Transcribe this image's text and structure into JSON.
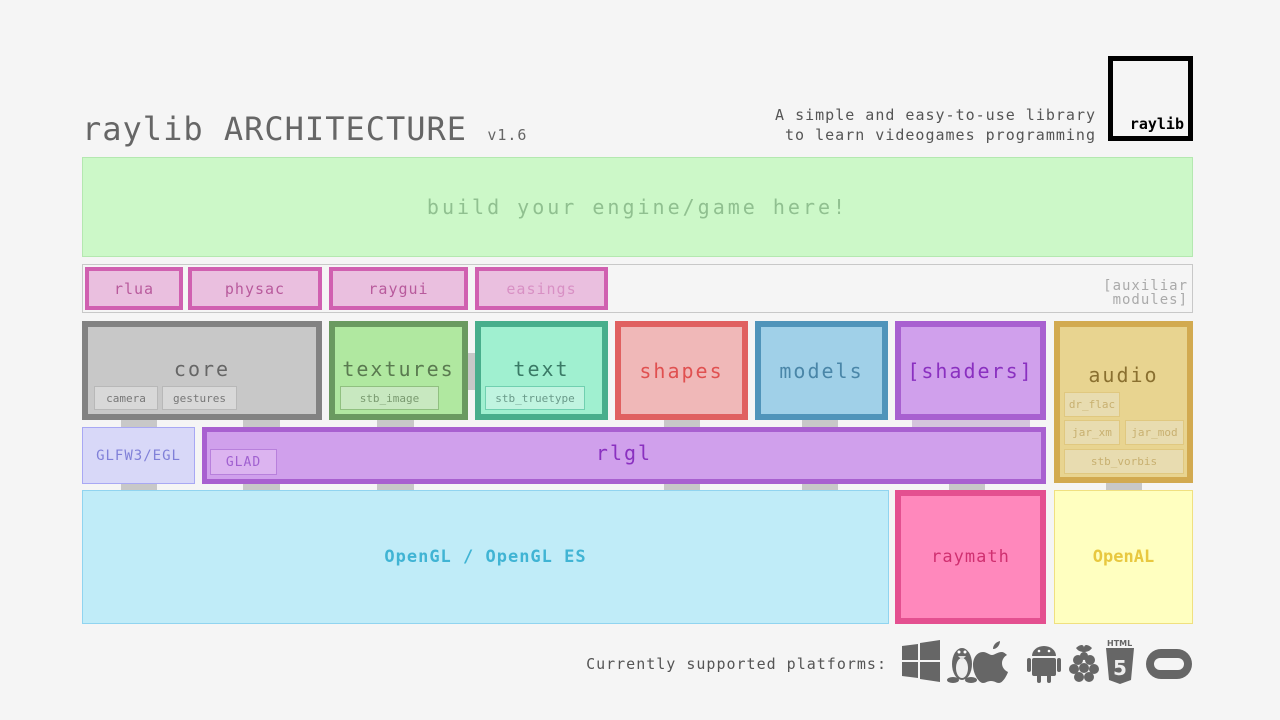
{
  "header": {
    "title": "raylib ARCHITECTURE",
    "version": "v1.6",
    "tagline_1": "A simple and easy-to-use library",
    "tagline_2": "to learn videogames programming",
    "logo": "raylib"
  },
  "engine": {
    "label": "build your engine/game here!"
  },
  "auxiliar": {
    "label_1": "[auxiliar",
    "label_2": "modules]",
    "modules": [
      "rlua",
      "physac",
      "raygui",
      "easings"
    ]
  },
  "modules": {
    "core": {
      "label": "core",
      "subs": [
        "camera",
        "gestures"
      ]
    },
    "textures": {
      "label": "textures",
      "subs": [
        "stb_image"
      ]
    },
    "text": {
      "label": "text",
      "subs": [
        "stb_truetype"
      ]
    },
    "shapes": {
      "label": "shapes"
    },
    "models": {
      "label": "models"
    },
    "shaders": {
      "label": "[shaders]"
    },
    "audio": {
      "label": "audio",
      "subs": [
        "dr_flac",
        "jar_xm",
        "jar_mod",
        "stb_vorbis"
      ]
    },
    "glfw": {
      "label": "GLFW3/EGL"
    },
    "rlgl": {
      "label": "rlgl",
      "subs": [
        "GLAD"
      ]
    },
    "opengl": {
      "label": "OpenGL / OpenGL ES"
    },
    "raymath": {
      "label": "raymath"
    },
    "openal": {
      "label": "OpenAL"
    }
  },
  "footer": {
    "platforms_label": "Currently supported platforms:",
    "platforms": [
      "windows-icon",
      "linux-icon",
      "apple-icon",
      "android-icon",
      "raspberry-pi-icon",
      "html5-icon",
      "oculus-icon"
    ],
    "html5_text": "HTML",
    "html5_num": "5"
  }
}
